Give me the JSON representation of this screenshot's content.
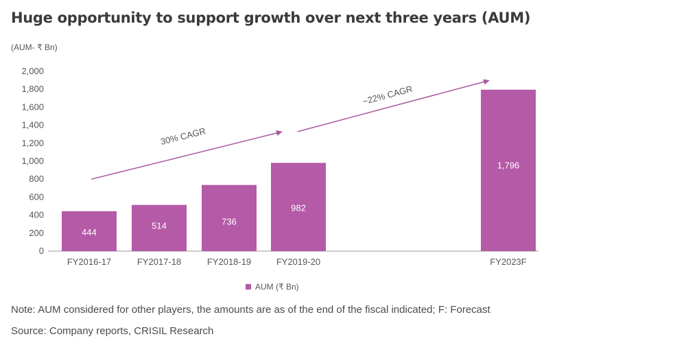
{
  "title": "Huge opportunity to support growth over next three years (AUM)",
  "unit_label": "(AUM- ₹ Bn)",
  "note": "Note: AUM considered for other players, the amounts are as of the end of the fiscal indicated; F: Forecast",
  "source": "Source: Company reports, CRISIL Research",
  "colors": {
    "bar": "#b45aa6",
    "axis": "#9a9a9a",
    "arrow": "#a8579c",
    "bar_label": "#ffffff"
  },
  "chart_data": {
    "type": "bar",
    "categories": [
      "FY2016-17",
      "FY2017-18",
      "FY2018-19",
      "FY2019-20",
      "FY2023F"
    ],
    "series": [
      {
        "name": "AUM (₹ Bn)",
        "values": [
          444,
          514,
          736,
          982,
          1796
        ]
      }
    ],
    "data_labels": [
      "444",
      "514",
      "736",
      "982",
      "1,796"
    ],
    "ylim": [
      0,
      2000
    ],
    "yticks": [
      0,
      200,
      400,
      600,
      800,
      1000,
      1200,
      1400,
      1600,
      1800,
      2000
    ],
    "ytick_labels": [
      "0",
      "200",
      "400",
      "600",
      "800",
      "1,000",
      "1,200",
      "1,400",
      "1,600",
      "1,800",
      "2,000"
    ],
    "grid": false,
    "legend": "bottom-center",
    "annotations": [
      {
        "text": "30% CAGR",
        "from_category": "FY2016-17",
        "to_category": "FY2019-20",
        "y_from": 800,
        "y_to": 1330
      },
      {
        "text": "~22% CAGR",
        "from_category": "FY2019-20",
        "to_category": "FY2023F",
        "y_from": 1330,
        "y_to": 1900
      }
    ]
  }
}
